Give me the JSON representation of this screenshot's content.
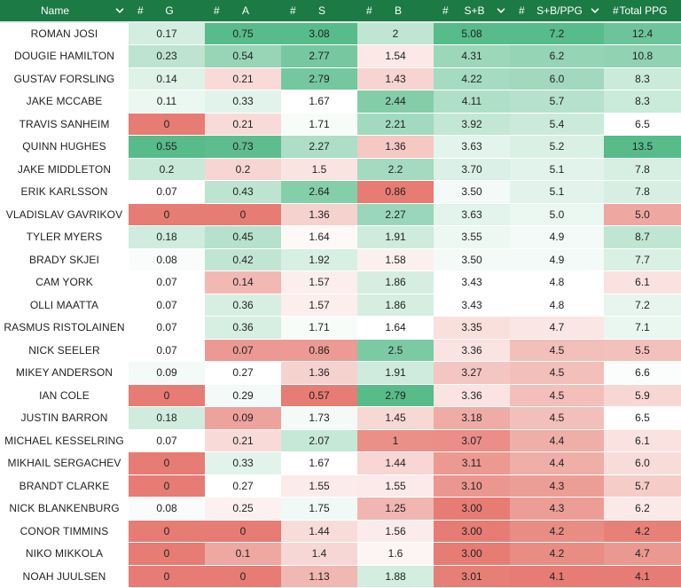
{
  "header": {
    "name": "Name",
    "num_label": "#",
    "g": "G",
    "a": "A",
    "s": "S",
    "b": "B",
    "sb": "S+B",
    "sbppg": "S+B/PPG",
    "total": "Total PPG"
  },
  "icons": {
    "sort": "chevron-down-icon"
  },
  "colors": {
    "header_bg": "#1c7a45",
    "good_strong": "#57bb8a",
    "bad_strong": "#e67c73",
    "neutral": "#ffffff"
  },
  "rows": [
    {
      "name": "ROMAN JOSI",
      "g": "0.17",
      "a": "0.75",
      "s": "3.08",
      "b": "2",
      "sb": "5.08",
      "sbppg": "7.2",
      "total": "12.4"
    },
    {
      "name": "DOUGIE HAMILTON",
      "g": "0.23",
      "a": "0.54",
      "s": "2.77",
      "b": "1.54",
      "sb": "4.31",
      "sbppg": "6.2",
      "total": "10.8"
    },
    {
      "name": "GUSTAV FORSLING",
      "g": "0.14",
      "a": "0.21",
      "s": "2.79",
      "b": "1.43",
      "sb": "4.22",
      "sbppg": "6.0",
      "total": "8.3"
    },
    {
      "name": "JAKE MCCABE",
      "g": "0.11",
      "a": "0.33",
      "s": "1.67",
      "b": "2.44",
      "sb": "4.11",
      "sbppg": "5.7",
      "total": "8.3"
    },
    {
      "name": "TRAVIS SANHEIM",
      "g": "0",
      "a": "0.21",
      "s": "1.71",
      "b": "2.21",
      "sb": "3.92",
      "sbppg": "5.4",
      "total": "6.5"
    },
    {
      "name": "QUINN HUGHES",
      "g": "0.55",
      "a": "0.73",
      "s": "2.27",
      "b": "1.36",
      "sb": "3.63",
      "sbppg": "5.2",
      "total": "13.5"
    },
    {
      "name": "JAKE MIDDLETON",
      "g": "0.2",
      "a": "0.2",
      "s": "1.5",
      "b": "2.2",
      "sb": "3.70",
      "sbppg": "5.1",
      "total": "7.8"
    },
    {
      "name": "ERIK KARLSSON",
      "g": "0.07",
      "a": "0.43",
      "s": "2.64",
      "b": "0.86",
      "sb": "3.50",
      "sbppg": "5.1",
      "total": "7.8"
    },
    {
      "name": "VLADISLAV GAVRIKOV",
      "g": "0",
      "a": "0",
      "s": "1.36",
      "b": "2.27",
      "sb": "3.63",
      "sbppg": "5.0",
      "total": "5.0"
    },
    {
      "name": "TYLER MYERS",
      "g": "0.18",
      "a": "0.45",
      "s": "1.64",
      "b": "1.91",
      "sb": "3.55",
      "sbppg": "4.9",
      "total": "8.7"
    },
    {
      "name": "BRADY SKJEI",
      "g": "0.08",
      "a": "0.42",
      "s": "1.92",
      "b": "1.58",
      "sb": "3.50",
      "sbppg": "4.9",
      "total": "7.7"
    },
    {
      "name": "CAM YORK",
      "g": "0.07",
      "a": "0.14",
      "s": "1.57",
      "b": "1.86",
      "sb": "3.43",
      "sbppg": "4.8",
      "total": "6.1"
    },
    {
      "name": "OLLI MAATTA",
      "g": "0.07",
      "a": "0.36",
      "s": "1.57",
      "b": "1.86",
      "sb": "3.43",
      "sbppg": "4.8",
      "total": "7.2"
    },
    {
      "name": "RASMUS RISTOLAINEN",
      "g": "0.07",
      "a": "0.36",
      "s": "1.71",
      "b": "1.64",
      "sb": "3.35",
      "sbppg": "4.7",
      "total": "7.1"
    },
    {
      "name": "NICK SEELER",
      "g": "0.07",
      "a": "0.07",
      "s": "0.86",
      "b": "2.5",
      "sb": "3.36",
      "sbppg": "4.5",
      "total": "5.5"
    },
    {
      "name": "MIKEY ANDERSON",
      "g": "0.09",
      "a": "0.27",
      "s": "1.36",
      "b": "1.91",
      "sb": "3.27",
      "sbppg": "4.5",
      "total": "6.6"
    },
    {
      "name": "IAN COLE",
      "g": "0",
      "a": "0.29",
      "s": "0.57",
      "b": "2.79",
      "sb": "3.36",
      "sbppg": "4.5",
      "total": "5.9"
    },
    {
      "name": "JUSTIN BARRON",
      "g": "0.18",
      "a": "0.09",
      "s": "1.73",
      "b": "1.45",
      "sb": "3.18",
      "sbppg": "4.5",
      "total": "6.5"
    },
    {
      "name": "MICHAEL KESSELRING",
      "g": "0.07",
      "a": "0.21",
      "s": "2.07",
      "b": "1",
      "sb": "3.07",
      "sbppg": "4.4",
      "total": "6.1"
    },
    {
      "name": "MIKHAIL SERGACHEV",
      "g": "0",
      "a": "0.33",
      "s": "1.67",
      "b": "1.44",
      "sb": "3.11",
      "sbppg": "4.4",
      "total": "6.0"
    },
    {
      "name": "BRANDT CLARKE",
      "g": "0",
      "a": "0.27",
      "s": "1.55",
      "b": "1.55",
      "sb": "3.10",
      "sbppg": "4.3",
      "total": "5.7"
    },
    {
      "name": "NICK BLANKENBURG",
      "g": "0.08",
      "a": "0.25",
      "s": "1.75",
      "b": "1.25",
      "sb": "3.00",
      "sbppg": "4.3",
      "total": "6.2"
    },
    {
      "name": "CONOR TIMMINS",
      "g": "0",
      "a": "0",
      "s": "1.44",
      "b": "1.56",
      "sb": "3.00",
      "sbppg": "4.2",
      "total": "4.2"
    },
    {
      "name": "NIKO MIKKOLA",
      "g": "0",
      "a": "0.1",
      "s": "1.4",
      "b": "1.6",
      "sb": "3.00",
      "sbppg": "4.2",
      "total": "4.7"
    },
    {
      "name": "NOAH JUULSEN",
      "g": "0",
      "a": "0",
      "s": "1.13",
      "b": "1.88",
      "sb": "3.01",
      "sbppg": "4.1",
      "total": "4.1"
    }
  ]
}
